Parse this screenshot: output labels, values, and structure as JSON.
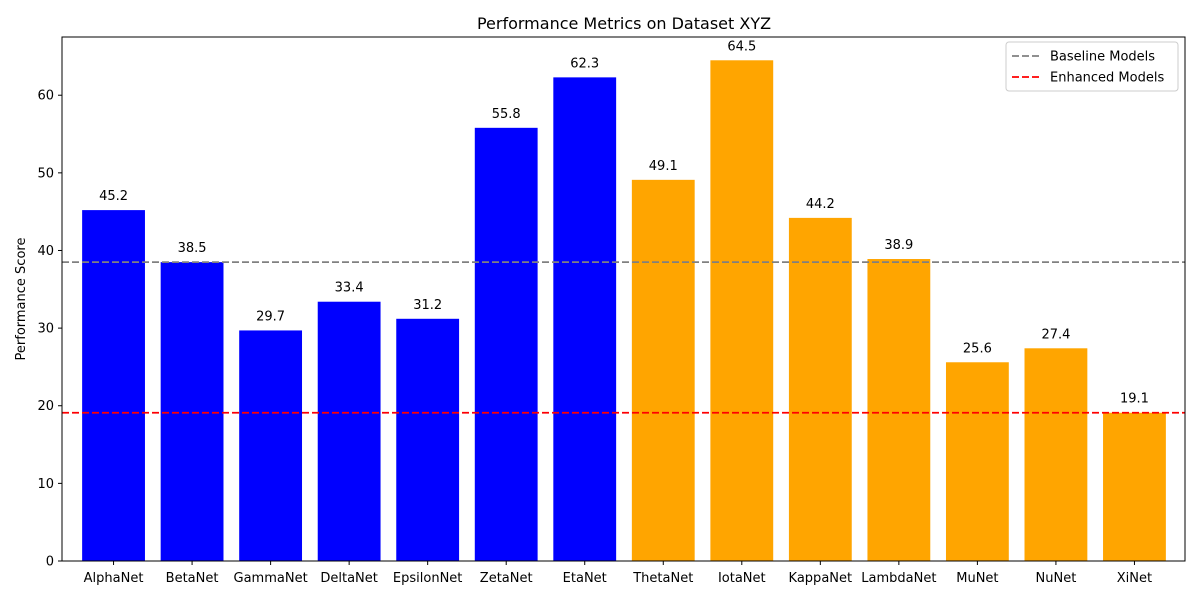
{
  "chart_data": {
    "type": "bar",
    "title": "Performance Metrics on Dataset XYZ",
    "xlabel": "",
    "ylabel": "Performance Score",
    "ylim": [
      0,
      67.5
    ],
    "yticks": [
      0,
      10,
      20,
      30,
      40,
      50,
      60
    ],
    "categories": [
      "AlphaNet",
      "BetaNet",
      "GammaNet",
      "DeltaNet",
      "EpsilonNet",
      "ZetaNet",
      "EtaNet",
      "ThetaNet",
      "IotaNet",
      "KappaNet",
      "LambdaNet",
      "MuNet",
      "NuNet",
      "XiNet"
    ],
    "values": [
      45.2,
      38.5,
      29.7,
      33.4,
      31.2,
      55.8,
      62.3,
      49.1,
      64.5,
      44.2,
      38.9,
      25.6,
      27.4,
      19.1
    ],
    "data_labels": [
      "45.2",
      "38.5",
      "29.7",
      "33.4",
      "31.2",
      "55.8",
      "62.3",
      "49.1",
      "64.5",
      "44.2",
      "38.9",
      "25.6",
      "27.4",
      "19.1"
    ],
    "bar_colors": [
      "#0000ff",
      "#0000ff",
      "#0000ff",
      "#0000ff",
      "#0000ff",
      "#0000ff",
      "#0000ff",
      "#ffa500",
      "#ffa500",
      "#ffa500",
      "#ffa500",
      "#ffa500",
      "#ffa500",
      "#ffa500"
    ],
    "reference_lines": [
      {
        "name": "Baseline Models",
        "y": 38.5,
        "color": "#808080",
        "style": "dashed"
      },
      {
        "name": "Enhanced Models",
        "y": 19.1,
        "color": "#ff0000",
        "style": "dashed"
      }
    ],
    "legend": {
      "placement": "top-right"
    },
    "grid": false
  }
}
